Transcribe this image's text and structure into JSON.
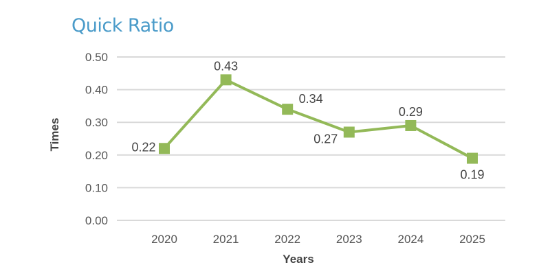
{
  "chart_data": {
    "type": "line",
    "title": "Quick Ratio",
    "xlabel": "Years",
    "ylabel": "Times",
    "categories": [
      "2020",
      "2021",
      "2022",
      "2023",
      "2024",
      "2025"
    ],
    "series": [
      {
        "values": [
          0.22,
          0.43,
          0.34,
          0.27,
          0.29,
          0.19
        ],
        "labels": [
          "0.22",
          "0.43",
          "0.34",
          "0.27",
          "0.29",
          "0.19"
        ]
      }
    ],
    "ylim": [
      0,
      0.5
    ],
    "yticks": [
      "0.00",
      "0.10",
      "0.20",
      "0.30",
      "0.40",
      "0.50"
    ],
    "grid": true,
    "legend": "none",
    "colors": {
      "line": "#93b958",
      "marker": "#93b958",
      "grid": "#d9d9d9",
      "title": "#4a9bc9"
    }
  }
}
